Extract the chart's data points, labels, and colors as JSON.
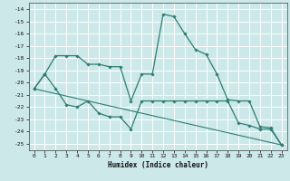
{
  "xlabel": "Humidex (Indice chaleur)",
  "ylabel": "",
  "bg_color": "#cce8e8",
  "grid_color": "#b0d8d8",
  "line_color": "#2e7d72",
  "xlim": [
    -0.5,
    23.5
  ],
  "ylim": [
    -25.5,
    -13.5
  ],
  "xticks": [
    0,
    1,
    2,
    3,
    4,
    5,
    6,
    7,
    8,
    9,
    10,
    11,
    12,
    13,
    14,
    15,
    16,
    17,
    18,
    19,
    20,
    21,
    22,
    23
  ],
  "yticks": [
    -25,
    -24,
    -23,
    -22,
    -21,
    -20,
    -19,
    -18,
    -17,
    -16,
    -15,
    -14
  ],
  "series": [
    {
      "x": [
        0,
        1,
        2,
        3,
        4,
        5,
        6,
        7,
        8,
        9,
        10,
        11,
        12,
        13,
        14,
        15,
        16,
        17,
        18,
        19,
        20,
        21,
        22,
        23
      ],
      "y": [
        -20.5,
        -19.3,
        -17.8,
        -17.8,
        -17.8,
        -18.5,
        -18.5,
        -18.7,
        -18.7,
        -21.5,
        -19.3,
        -19.3,
        -14.4,
        -14.6,
        -16.0,
        -17.3,
        -17.7,
        -19.3,
        -21.4,
        -21.5,
        -21.5,
        -23.6,
        -23.7,
        -25.1
      ],
      "marker": true
    },
    {
      "x": [
        0,
        1,
        2,
        3,
        4,
        5,
        6,
        7,
        8,
        9,
        10,
        11,
        12,
        13,
        14,
        15,
        16,
        17,
        18,
        19,
        20,
        21,
        22,
        23
      ],
      "y": [
        -20.5,
        -19.3,
        -20.5,
        -21.8,
        -22.0,
        -21.5,
        -22.5,
        -22.8,
        -22.8,
        -23.8,
        -21.5,
        -21.5,
        -21.5,
        -21.5,
        -21.5,
        -21.5,
        -21.5,
        -21.5,
        -21.5,
        -23.3,
        -23.5,
        -23.8,
        -23.8,
        -25.1
      ],
      "marker": true
    },
    {
      "x": [
        0,
        23
      ],
      "y": [
        -20.5,
        -25.1
      ],
      "marker": false
    }
  ]
}
